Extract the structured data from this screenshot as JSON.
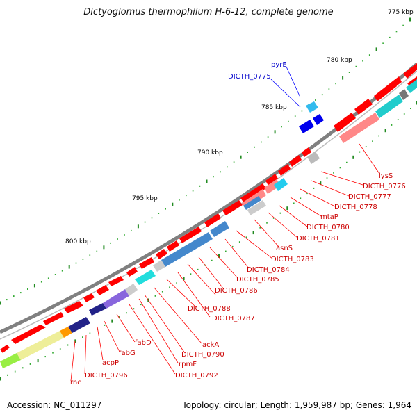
{
  "header": {
    "title": "Dictyoglomus thermophilum H-6-12, complete genome"
  },
  "footer": {
    "accession": "Accession: NC_011297",
    "summary": "Topology: circular; Length: 1,959,987 bp; Genes: 1,964"
  },
  "ticks": [
    "775 kbp",
    "780 kbp",
    "785 kbp",
    "790 kbp",
    "795 kbp",
    "800 kbp"
  ],
  "labels_blue": [
    "pyrE",
    "DICTH_0775"
  ],
  "labels_red": [
    "lysS",
    "DICTH_0776",
    "DICTH_0777",
    "DICTH_0778",
    "mtaP",
    "DICTH_0780",
    "DICTH_0781",
    "asnS",
    "DICTH_0783",
    "DICTH_0784",
    "DICTH_0785",
    "DICTH_0786",
    "DICTH_0788",
    "DICTH_0787",
    "ackA",
    "DICTH_0790",
    "rpmF",
    "DICTH_0792",
    "fabD",
    "fabG",
    "acpP",
    "DICTH_0796",
    "rnc"
  ],
  "colors": {
    "backbone": "#808080",
    "forward_gene": "#ff0000",
    "reverse_gene": "#0000ee",
    "label_line_red": "#ff0000",
    "label_line_blue": "#0000ff",
    "tick_major": "#228b22"
  }
}
